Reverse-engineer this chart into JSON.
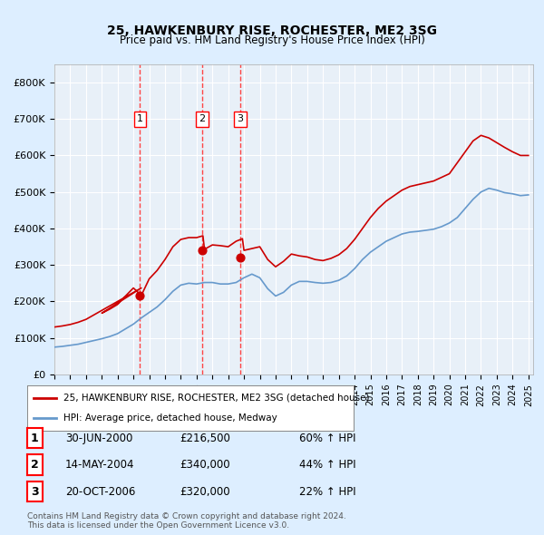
{
  "title": "25, HAWKENBURY RISE, ROCHESTER, ME2 3SG",
  "subtitle": "Price paid vs. HM Land Registry's House Price Index (HPI)",
  "legend_line1": "25, HAWKENBURY RISE, ROCHESTER, ME2 3SG (detached house)",
  "legend_line2": "HPI: Average price, detached house, Medway",
  "sale_dates": [
    "2000-06-30",
    "2004-05-14",
    "2006-10-20"
  ],
  "sale_prices": [
    216500,
    340000,
    320000
  ],
  "sale_labels": [
    "1",
    "2",
    "3"
  ],
  "sale_table": [
    [
      "1",
      "30-JUN-2000",
      "£216,500",
      "60% ↑ HPI"
    ],
    [
      "2",
      "14-MAY-2004",
      "£340,000",
      "44% ↑ HPI"
    ],
    [
      "3",
      "20-OCT-2006",
      "£320,000",
      "22% ↑ HPI"
    ]
  ],
  "footnote": "Contains HM Land Registry data © Crown copyright and database right 2024.\nThis data is licensed under the Open Government Licence v3.0.",
  "hpi_line_color": "#6699cc",
  "price_line_color": "#cc0000",
  "sale_dot_color": "#cc0000",
  "vline_color": "#ff4444",
  "bg_color": "#ddeeff",
  "plot_bg": "#e8f0f8",
  "grid_color": "#ffffff",
  "ylim": [
    0,
    850000
  ],
  "yticks": [
    0,
    100000,
    200000,
    300000,
    400000,
    500000,
    600000,
    700000,
    800000
  ],
  "ytick_labels": [
    "£0",
    "£100K",
    "£200K",
    "£300K",
    "£400K",
    "£500K",
    "£600K",
    "£700K",
    "£800K"
  ]
}
